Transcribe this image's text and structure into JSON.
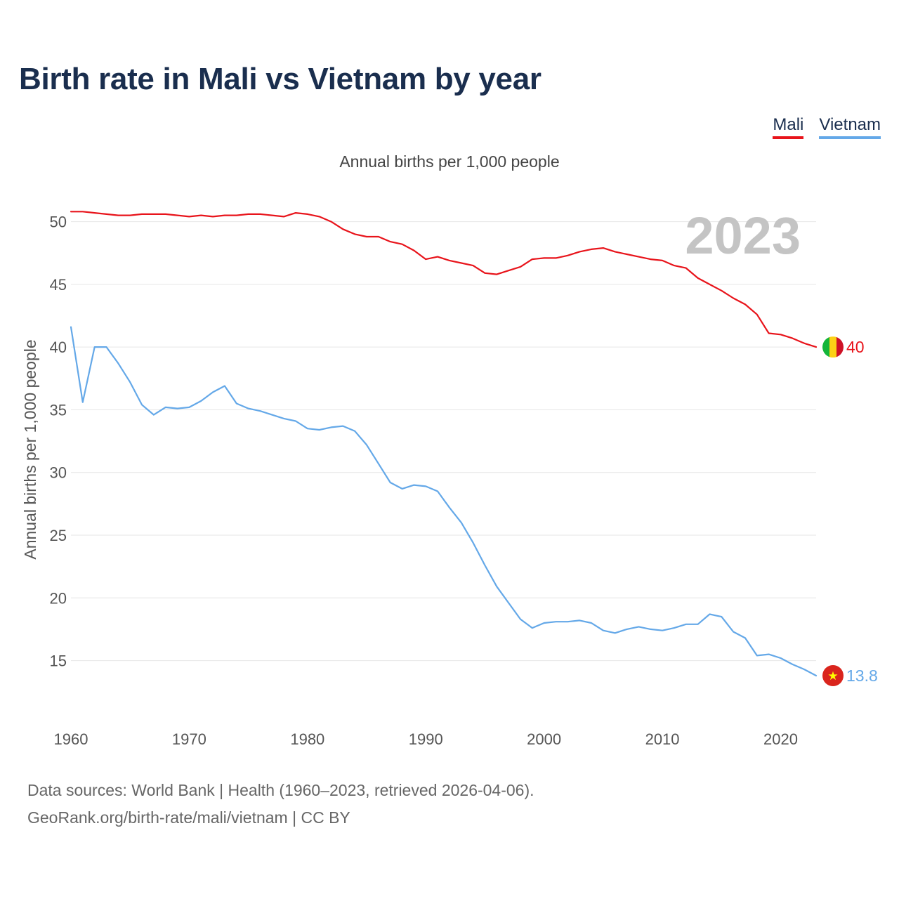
{
  "title": "Birth rate in Mali vs Vietnam by year",
  "legend": [
    {
      "name": "Mali",
      "color": "#e8141b"
    },
    {
      "name": "Vietnam",
      "color": "#64a8e8"
    }
  ],
  "subtitle": "Annual births per 1,000 people",
  "footer": {
    "source": "Data sources: World Bank | Health (1960–2023, retrieved 2026-04-06).",
    "credit": "GeoRank.org/birth-rate/mali/vietnam | CC BY"
  },
  "chart_data": {
    "type": "line",
    "title": "Birth rate in Mali vs Vietnam by year",
    "xlabel": "",
    "ylabel": "Annual births per 1,000 people",
    "year_label": "2023",
    "xlim": [
      1960,
      2023
    ],
    "ylim": [
      11,
      53
    ],
    "xticks": [
      1960,
      1970,
      1980,
      1990,
      2000,
      2010,
      2020
    ],
    "yticks": [
      15,
      20,
      25,
      30,
      35,
      40,
      45,
      50
    ],
    "grid": true,
    "x": [
      1960,
      1961,
      1962,
      1963,
      1964,
      1965,
      1966,
      1967,
      1968,
      1969,
      1970,
      1971,
      1972,
      1973,
      1974,
      1975,
      1976,
      1977,
      1978,
      1979,
      1980,
      1981,
      1982,
      1983,
      1984,
      1985,
      1986,
      1987,
      1988,
      1989,
      1990,
      1991,
      1992,
      1993,
      1994,
      1995,
      1996,
      1997,
      1998,
      1999,
      2000,
      2001,
      2002,
      2003,
      2004,
      2005,
      2006,
      2007,
      2008,
      2009,
      2010,
      2011,
      2012,
      2013,
      2014,
      2015,
      2016,
      2017,
      2018,
      2019,
      2020,
      2021,
      2022,
      2023
    ],
    "series": [
      {
        "name": "Mali",
        "color": "#e8141b",
        "end_label": "40",
        "values": [
          50.8,
          50.8,
          50.7,
          50.6,
          50.5,
          50.5,
          50.6,
          50.6,
          50.6,
          50.5,
          50.4,
          50.5,
          50.4,
          50.5,
          50.5,
          50.6,
          50.6,
          50.5,
          50.4,
          50.7,
          50.6,
          50.4,
          50.0,
          49.4,
          49.0,
          48.8,
          48.8,
          48.4,
          48.2,
          47.7,
          47.0,
          47.2,
          46.9,
          46.7,
          46.5,
          45.9,
          45.8,
          46.1,
          46.4,
          47.0,
          47.1,
          47.1,
          47.3,
          47.6,
          47.8,
          47.9,
          47.6,
          47.4,
          47.2,
          47.0,
          46.9,
          46.5,
          46.3,
          45.5,
          45.0,
          44.5,
          43.9,
          43.4,
          42.6,
          41.1,
          41.0,
          40.7,
          40.3,
          40.0
        ]
      },
      {
        "name": "Vietnam",
        "color": "#64a8e8",
        "end_label": "13.8",
        "values": [
          41.6,
          35.6,
          40.0,
          40.0,
          38.7,
          37.2,
          35.4,
          34.6,
          35.2,
          35.1,
          35.2,
          35.7,
          36.4,
          36.9,
          35.5,
          35.1,
          34.9,
          34.6,
          34.3,
          34.1,
          33.5,
          33.4,
          33.6,
          33.7,
          33.3,
          32.2,
          30.7,
          29.2,
          28.7,
          29.0,
          28.9,
          28.5,
          27.2,
          26.0,
          24.4,
          22.6,
          20.9,
          19.6,
          18.3,
          17.6,
          18.0,
          18.1,
          18.1,
          18.2,
          18.0,
          17.4,
          17.2,
          17.5,
          17.7,
          17.5,
          17.4,
          17.6,
          17.9,
          17.9,
          18.7,
          18.5,
          17.3,
          16.8,
          15.4,
          15.5,
          15.2,
          14.7,
          14.3,
          13.8
        ]
      }
    ]
  }
}
